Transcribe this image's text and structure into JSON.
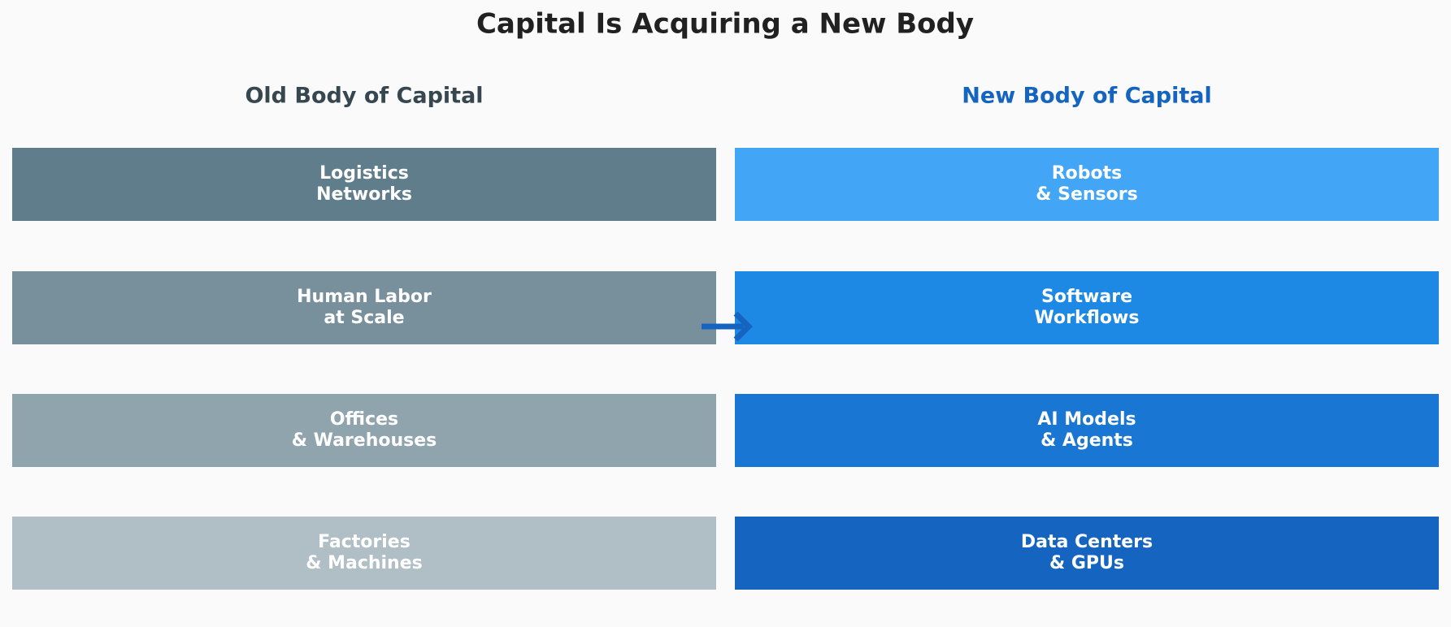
{
  "title": "Capital Is Acquiring a New Body",
  "old": {
    "heading": "Old Body of Capital",
    "items": [
      [
        "Logistics",
        "Networks"
      ],
      [
        "Human Labor",
        "at Scale"
      ],
      [
        "Offices",
        "& Warehouses"
      ],
      [
        "Factories",
        "& Machines"
      ]
    ]
  },
  "new": {
    "heading": "New Body of Capital",
    "items": [
      [
        "Robots",
        "& Sensors"
      ],
      [
        "Software",
        "Workflows"
      ],
      [
        "AI Models",
        "& Agents"
      ],
      [
        "Data Centers",
        "& GPUs"
      ]
    ]
  }
}
